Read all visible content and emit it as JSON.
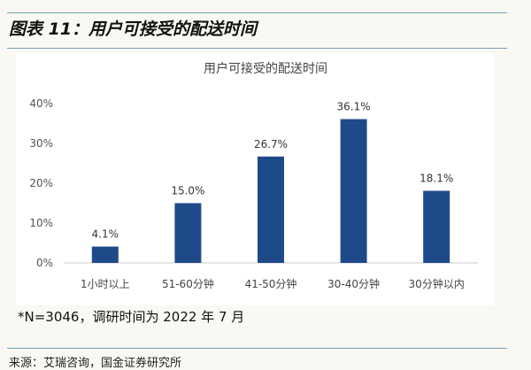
{
  "figure_title": "图表 11：用户可接受的配送时间",
  "note": "*N=3046，调研时间为 2022 年 7 月",
  "source": "来源：艾瑞咨询，国金证券研究所",
  "colors": {
    "bar": "#1f4a8a",
    "rule": "#6fa1b3"
  },
  "chart_data": {
    "type": "bar",
    "title": "用户可接受的配送时间",
    "categories": [
      "1小时以上",
      "51-60分钟",
      "41-50分钟",
      "30-40分钟",
      "30分钟以内"
    ],
    "values": [
      4.1,
      15.0,
      26.7,
      36.1,
      18.1
    ],
    "data_labels": [
      "4.1%",
      "15.0%",
      "26.7%",
      "36.1%",
      "18.1%"
    ],
    "yticks": [
      "0%",
      "10%",
      "20%",
      "30%",
      "40%"
    ],
    "ylim": [
      0,
      40
    ],
    "xlabel": "",
    "ylabel": "",
    "grid": false
  }
}
